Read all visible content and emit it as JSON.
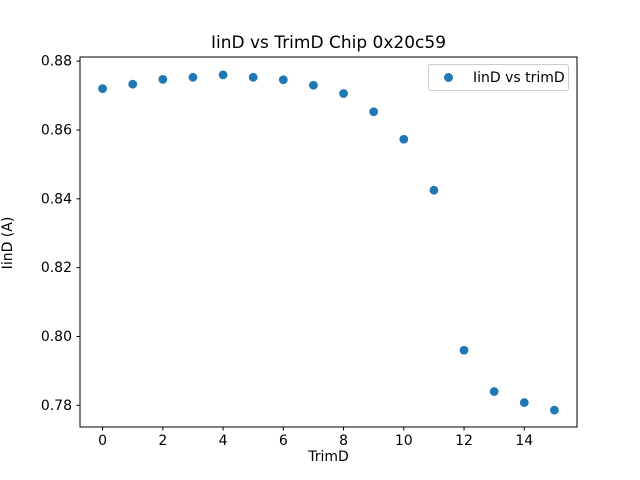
{
  "figure": {
    "title": "IinD vs TrimD Chip 0x20c59",
    "xlabel": "TrimD",
    "ylabel": "IinD (A)",
    "background_color": "#ffffff",
    "frame_color": "#000000"
  },
  "legend": {
    "label": "IinD vs trimD",
    "marker_color": "#1f77b4",
    "border_color": "#cccccc",
    "position": "upper right"
  },
  "chart_data": {
    "type": "scatter",
    "title": "IinD vs TrimD Chip 0x20c59",
    "xlabel": "TrimD",
    "ylabel": "IinD (A)",
    "legend_entries": [
      "IinD vs trimD"
    ],
    "legend_position": "upper right",
    "marker_color": "#1f77b4",
    "marker_radius_px": 4.4,
    "grid": false,
    "x": [
      0,
      1,
      2,
      3,
      4,
      5,
      6,
      7,
      8,
      9,
      10,
      11,
      12,
      13,
      14,
      15
    ],
    "y": [
      0.872,
      0.8733,
      0.8747,
      0.8753,
      0.876,
      0.8753,
      0.8746,
      0.873,
      0.8706,
      0.8653,
      0.8573,
      0.8425,
      0.796,
      0.784,
      0.7808,
      0.7786
    ],
    "xlim": [
      -0.75,
      15.75
    ],
    "ylim": [
      0.7737,
      0.8812
    ],
    "xticks": {
      "values": [
        0,
        2,
        4,
        6,
        8,
        10,
        12,
        14
      ],
      "labels": [
        "0",
        "2",
        "4",
        "6",
        "8",
        "10",
        "12",
        "14"
      ]
    },
    "yticks": {
      "values": [
        0.78,
        0.8,
        0.82,
        0.84,
        0.86,
        0.88
      ],
      "labels": [
        "0.78",
        "0.80",
        "0.82",
        "0.84",
        "0.86",
        "0.88"
      ]
    }
  }
}
